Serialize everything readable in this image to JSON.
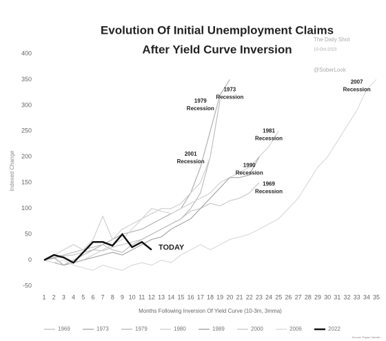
{
  "chart_data": {
    "type": "line",
    "title": "Evolution Of Initial Unemployment Claims",
    "subtitle": "After Yield Curve Inversion",
    "watermarks": [
      "The Daily Shot",
      "10-Oct-2023",
      "@SoberLook"
    ],
    "y_label": "Indexed Change",
    "x_label": "Months Following Inversion Of Yield Curve (10-3m, 3mma)",
    "x": [
      1,
      2,
      3,
      4,
      5,
      6,
      7,
      8,
      9,
      10,
      11,
      12,
      13,
      14,
      15,
      16,
      17,
      18,
      19,
      20,
      21,
      22,
      23,
      24,
      25,
      26,
      27,
      28,
      29,
      30,
      31,
      32,
      33,
      34,
      35
    ],
    "xlim": [
      1,
      35
    ],
    "xticks": [
      1,
      2,
      3,
      4,
      5,
      6,
      7,
      8,
      9,
      10,
      11,
      12,
      13,
      14,
      15,
      16,
      17,
      18,
      19,
      20,
      21,
      22,
      23,
      24,
      25,
      26,
      27,
      28,
      29,
      30,
      31,
      32,
      33,
      34,
      35
    ],
    "ylim": [
      -50,
      400
    ],
    "yticks": [
      -50,
      0,
      50,
      100,
      150,
      200,
      250,
      300,
      350,
      400
    ],
    "series": [
      {
        "name": "1969",
        "color": "#c8c8c8",
        "values": [
          0,
          3,
          8,
          10,
          15,
          20,
          18,
          25,
          30,
          35,
          40,
          50,
          60,
          70,
          80,
          95,
          100,
          110,
          105,
          115,
          120,
          130,
          150,
          null,
          null,
          null,
          null,
          null,
          null,
          null,
          null,
          null,
          null,
          null,
          null
        ]
      },
      {
        "name": "1973",
        "color": "#b0b0b0",
        "values": [
          0,
          -5,
          -10,
          0,
          10,
          20,
          30,
          40,
          50,
          55,
          60,
          70,
          80,
          90,
          100,
          130,
          180,
          250,
          320,
          350,
          null,
          null,
          null,
          null,
          null,
          null,
          null,
          null,
          null,
          null,
          null,
          null,
          null,
          null,
          null
        ]
      },
      {
        "name": "1979",
        "color": "#bdbdbd",
        "values": [
          0,
          5,
          10,
          15,
          20,
          25,
          30,
          20,
          15,
          30,
          40,
          50,
          60,
          70,
          80,
          100,
          130,
          200,
          310,
          null,
          null,
          null,
          null,
          null,
          null,
          null,
          null,
          null,
          null,
          null,
          null,
          null,
          null,
          null,
          null
        ]
      },
      {
        "name": "1980",
        "color": "#d2d2d2",
        "values": [
          0,
          10,
          5,
          -5,
          0,
          10,
          20,
          30,
          40,
          60,
          80,
          100,
          95,
          90,
          100,
          110,
          120,
          130,
          150,
          160,
          170,
          180,
          200,
          220,
          250,
          null,
          null,
          null,
          null,
          null,
          null,
          null,
          null,
          null,
          null
        ]
      },
      {
        "name": "1989",
        "color": "#a8a8a8",
        "values": [
          0,
          5,
          -10,
          -5,
          0,
          5,
          10,
          15,
          10,
          20,
          30,
          40,
          45,
          60,
          70,
          80,
          100,
          120,
          140,
          160,
          160,
          165,
          200,
          null,
          null,
          null,
          null,
          null,
          null,
          null,
          null,
          null,
          null,
          null,
          null
        ]
      },
      {
        "name": "2000",
        "color": "#cfcfcf",
        "values": [
          0,
          10,
          20,
          30,
          20,
          40,
          85,
          40,
          60,
          70,
          80,
          90,
          100,
          100,
          110,
          130,
          150,
          200,
          null,
          null,
          null,
          null,
          null,
          null,
          null,
          null,
          null,
          null,
          null,
          null,
          null,
          null,
          null,
          null,
          null
        ]
      },
      {
        "name": "2006",
        "color": "#dadada",
        "values": [
          0,
          -5,
          0,
          -10,
          -15,
          -20,
          -10,
          -15,
          -20,
          -10,
          -5,
          -10,
          0,
          -5,
          10,
          20,
          30,
          20,
          30,
          40,
          45,
          50,
          60,
          70,
          80,
          100,
          120,
          150,
          180,
          200,
          230,
          260,
          290,
          330,
          350
        ]
      },
      {
        "name": "2022",
        "color": "#111111",
        "width": 2.5,
        "values": [
          0,
          10,
          5,
          -5,
          15,
          35,
          35,
          28,
          50,
          25,
          35,
          20,
          null,
          null,
          null,
          null,
          null,
          null,
          null,
          null,
          null,
          null,
          null,
          null,
          null,
          null,
          null,
          null,
          null,
          null,
          null,
          null,
          null,
          null,
          null
        ]
      }
    ],
    "annotations": [
      {
        "text": "1973",
        "text2": "Recession",
        "x": 20,
        "y": 330
      },
      {
        "text": "1979",
        "text2": "Recession",
        "x": 17,
        "y": 308
      },
      {
        "text": "2007",
        "text2": "Recession",
        "x": 33,
        "y": 345
      },
      {
        "text": "1981",
        "text2": "Recession",
        "x": 24,
        "y": 250
      },
      {
        "text": "2001",
        "text2": "Recession",
        "x": 16,
        "y": 205
      },
      {
        "text": "1990",
        "text2": "Recession",
        "x": 22,
        "y": 183
      },
      {
        "text": "1969",
        "text2": "Recession",
        "x": 24,
        "y": 147
      }
    ],
    "today_label": "TODAY",
    "source": "Source: Pagan Sandler"
  }
}
